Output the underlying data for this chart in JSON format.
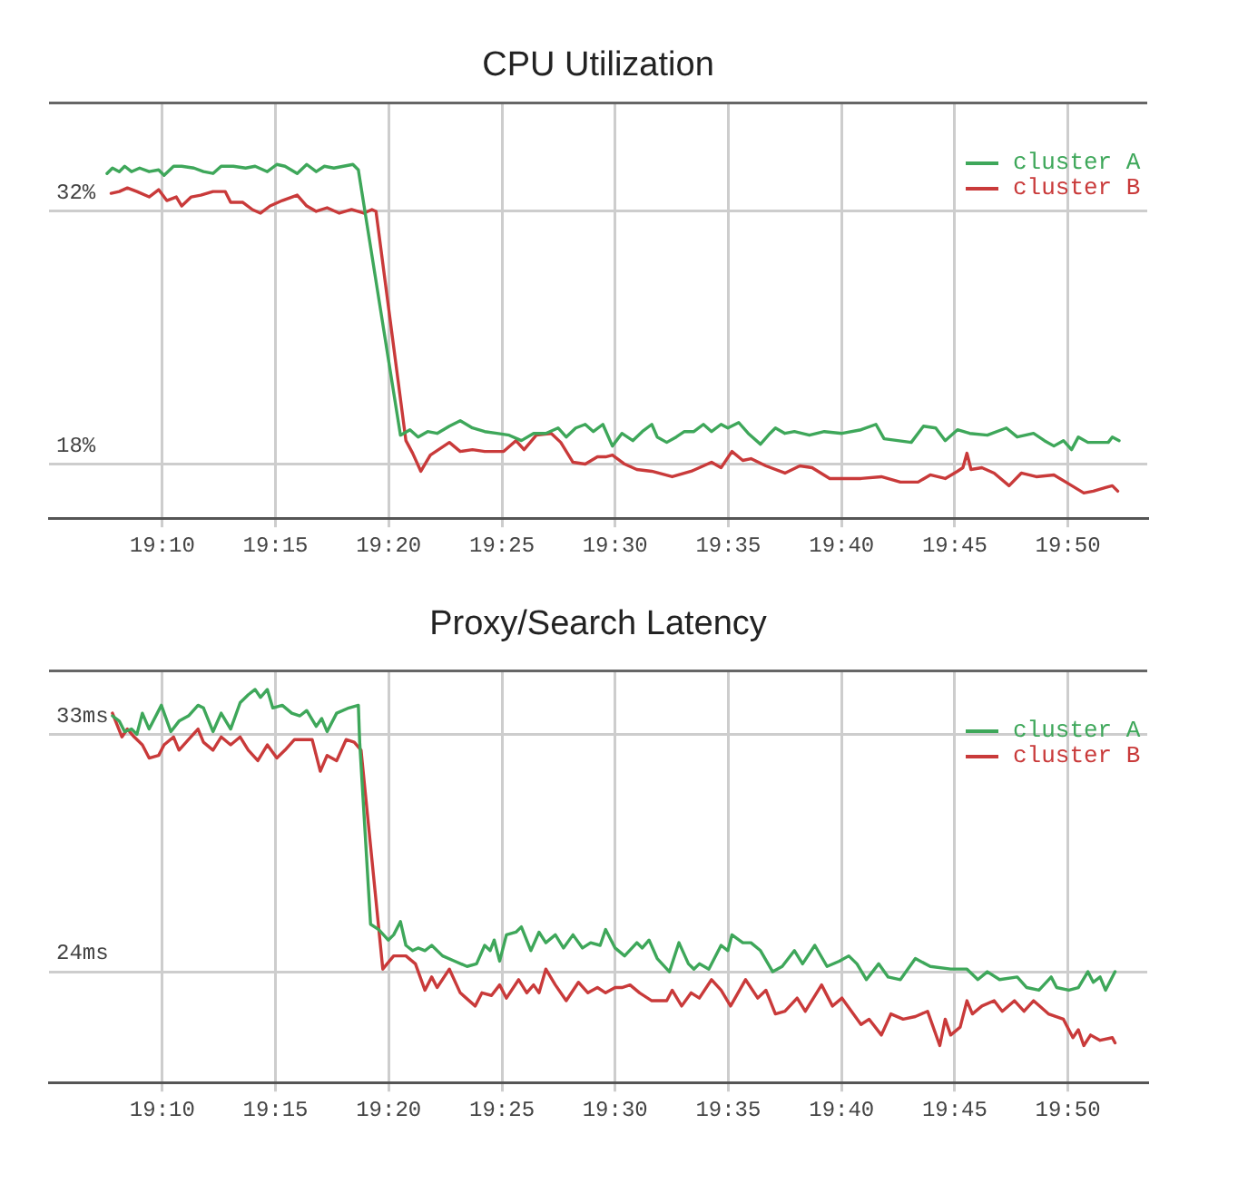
{
  "chart_data": [
    {
      "type": "line",
      "title": "CPU Utilization",
      "grid": true,
      "legend": "top right",
      "xlim": [
        19.0833,
        19.8917
      ],
      "xticks": [
        {
          "value": 19.1667,
          "label": "19:10"
        },
        {
          "value": 19.25,
          "label": "19:15"
        },
        {
          "value": 19.3333,
          "label": "19:20"
        },
        {
          "value": 19.4167,
          "label": "19:25"
        },
        {
          "value": 19.5,
          "label": "19:30"
        },
        {
          "value": 19.5833,
          "label": "19:35"
        },
        {
          "value": 19.6667,
          "label": "19:40"
        },
        {
          "value": 19.75,
          "label": "19:45"
        },
        {
          "value": 19.8333,
          "label": "19:50"
        }
      ],
      "ylim": [
        15,
        38
      ],
      "yticks": [
        {
          "value": 18,
          "label": "18%"
        },
        {
          "value": 32,
          "label": "32%"
        }
      ],
      "series": [
        {
          "name": "cluster A",
          "color": "#3ea75a",
          "x": [
            19.126,
            19.13,
            19.135,
            19.139,
            19.144,
            19.15,
            19.157,
            19.164,
            19.168,
            19.175,
            19.181,
            19.19,
            19.197,
            19.204,
            19.21,
            19.219,
            19.228,
            19.235,
            19.244,
            19.251,
            19.257,
            19.266,
            19.273,
            19.28,
            19.286,
            19.293,
            19.3,
            19.307,
            19.311,
            19.342,
            19.349,
            19.355,
            19.362,
            19.369,
            19.378,
            19.386,
            19.395,
            19.404,
            19.413,
            19.422,
            19.431,
            19.44,
            19.449,
            19.458,
            19.464,
            19.471,
            19.478,
            19.484,
            19.491,
            19.498,
            19.505,
            19.513,
            19.52,
            19.527,
            19.531,
            19.538,
            19.545,
            19.551,
            19.558,
            19.565,
            19.571,
            19.578,
            19.583,
            19.591,
            19.598,
            19.607,
            19.614,
            19.618,
            19.625,
            19.632,
            19.643,
            19.654,
            19.667,
            19.681,
            19.692,
            19.698,
            19.718,
            19.727,
            19.736,
            19.743,
            19.752,
            19.761,
            19.774,
            19.788,
            19.796,
            19.808,
            19.816,
            19.823,
            19.83,
            19.836,
            19.841,
            19.848,
            19.854,
            19.863,
            19.866,
            19.871
          ],
          "values": [
            34.1,
            34.4,
            34.2,
            34.5,
            34.2,
            34.4,
            34.2,
            34.3,
            34.0,
            34.5,
            34.5,
            34.4,
            34.2,
            34.1,
            34.5,
            34.5,
            34.4,
            34.5,
            34.2,
            34.6,
            34.5,
            34.1,
            34.6,
            34.2,
            34.5,
            34.4,
            34.5,
            34.6,
            34.3,
            19.6,
            19.9,
            19.5,
            19.8,
            19.7,
            20.1,
            20.4,
            20.0,
            19.8,
            19.7,
            19.6,
            19.3,
            19.7,
            19.7,
            20.0,
            19.5,
            20.0,
            20.2,
            19.8,
            20.2,
            19.0,
            19.7,
            19.3,
            19.8,
            20.2,
            19.5,
            19.2,
            19.5,
            19.8,
            19.8,
            20.2,
            19.8,
            20.2,
            20.0,
            20.3,
            19.7,
            19.1,
            19.7,
            20.0,
            19.7,
            19.8,
            19.6,
            19.8,
            19.7,
            19.9,
            20.2,
            19.4,
            19.2,
            20.1,
            20.0,
            19.3,
            19.9,
            19.7,
            19.6,
            20.0,
            19.5,
            19.7,
            19.3,
            19.0,
            19.3,
            18.8,
            19.5,
            19.2,
            19.2,
            19.2,
            19.5,
            19.3
          ]
        },
        {
          "name": "cluster B",
          "color": "#c93a3a",
          "x": [
            19.129,
            19.135,
            19.141,
            19.148,
            19.157,
            19.164,
            19.17,
            19.177,
            19.181,
            19.188,
            19.195,
            19.204,
            19.213,
            19.217,
            19.226,
            19.233,
            19.239,
            19.246,
            19.255,
            19.266,
            19.273,
            19.28,
            19.288,
            19.297,
            19.306,
            19.315,
            19.321,
            19.324,
            19.346,
            19.351,
            19.357,
            19.364,
            19.378,
            19.386,
            19.395,
            19.404,
            19.413,
            19.418,
            19.427,
            19.433,
            19.442,
            19.453,
            19.46,
            19.469,
            19.478,
            19.487,
            19.493,
            19.498,
            19.507,
            19.516,
            19.527,
            19.542,
            19.556,
            19.571,
            19.578,
            19.586,
            19.594,
            19.6,
            19.611,
            19.625,
            19.636,
            19.645,
            19.658,
            19.681,
            19.696,
            19.71,
            19.723,
            19.732,
            19.743,
            19.752,
            19.756,
            19.759,
            19.762,
            19.77,
            19.779,
            19.79,
            19.799,
            19.81,
            19.823,
            19.834,
            19.845,
            19.852,
            19.861,
            19.866,
            19.87
          ],
          "values": [
            33.0,
            33.1,
            33.3,
            33.1,
            32.8,
            33.2,
            32.6,
            32.8,
            32.3,
            32.8,
            32.9,
            33.1,
            33.1,
            32.5,
            32.5,
            32.1,
            31.9,
            32.3,
            32.6,
            32.9,
            32.3,
            32.0,
            32.2,
            31.9,
            32.1,
            31.9,
            32.1,
            32.0,
            19.3,
            18.6,
            17.6,
            18.5,
            19.2,
            18.7,
            18.8,
            18.7,
            18.7,
            18.7,
            19.3,
            18.8,
            19.6,
            19.7,
            19.2,
            18.1,
            18.0,
            18.4,
            18.4,
            18.5,
            18.0,
            17.7,
            17.6,
            17.3,
            17.6,
            18.1,
            17.8,
            18.7,
            18.2,
            18.3,
            17.9,
            17.5,
            17.9,
            17.8,
            17.2,
            17.2,
            17.3,
            17.0,
            17.0,
            17.4,
            17.2,
            17.6,
            17.8,
            18.6,
            17.7,
            17.8,
            17.5,
            16.8,
            17.5,
            17.3,
            17.4,
            16.9,
            16.4,
            16.5,
            16.7,
            16.8,
            16.5
          ]
        }
      ]
    },
    {
      "type": "line",
      "title": "Proxy/Search Latency",
      "grid": true,
      "legend": "top right",
      "xlim": [
        19.0833,
        19.8917
      ],
      "xticks": [
        {
          "value": 19.1667,
          "label": "19:10"
        },
        {
          "value": 19.25,
          "label": "19:15"
        },
        {
          "value": 19.3333,
          "label": "19:20"
        },
        {
          "value": 19.4167,
          "label": "19:25"
        },
        {
          "value": 19.5,
          "label": "19:30"
        },
        {
          "value": 19.5833,
          "label": "19:35"
        },
        {
          "value": 19.6667,
          "label": "19:40"
        },
        {
          "value": 19.75,
          "label": "19:45"
        },
        {
          "value": 19.8333,
          "label": "19:50"
        }
      ],
      "ylim": [
        19.8,
        35.4
      ],
      "yticks": [
        {
          "value": 24,
          "label": "24ms"
        },
        {
          "value": 33,
          "label": "33ms"
        }
      ],
      "series": [
        {
          "name": "cluster A",
          "color": "#3ea75a",
          "x": [
            19.13,
            19.135,
            19.139,
            19.144,
            19.148,
            19.152,
            19.157,
            19.166,
            19.173,
            19.179,
            19.186,
            19.193,
            19.197,
            19.204,
            19.21,
            19.217,
            19.224,
            19.23,
            19.235,
            19.239,
            19.244,
            19.248,
            19.255,
            19.262,
            19.268,
            19.273,
            19.28,
            19.284,
            19.288,
            19.295,
            19.304,
            19.311,
            19.312,
            19.32,
            19.326,
            19.333,
            19.337,
            19.342,
            19.346,
            19.351,
            19.355,
            19.36,
            19.365,
            19.373,
            19.382,
            19.391,
            19.398,
            19.404,
            19.408,
            19.411,
            19.415,
            19.42,
            19.427,
            19.431,
            19.438,
            19.444,
            19.449,
            19.456,
            19.462,
            19.469,
            19.476,
            19.482,
            19.489,
            19.493,
            19.5,
            19.507,
            19.516,
            19.52,
            19.525,
            19.531,
            19.54,
            19.547,
            19.554,
            19.558,
            19.562,
            19.569,
            19.578,
            19.583,
            19.586,
            19.594,
            19.6,
            19.607,
            19.616,
            19.623,
            19.632,
            19.638,
            19.647,
            19.656,
            19.665,
            19.672,
            19.678,
            19.685,
            19.694,
            19.701,
            19.71,
            19.721,
            19.732,
            19.747,
            19.759,
            19.767,
            19.774,
            19.783,
            19.796,
            19.803,
            19.812,
            19.821,
            19.825,
            19.834,
            19.841,
            19.848,
            19.852,
            19.857,
            19.861,
            19.868
          ],
          "values": [
            33.7,
            33.5,
            33.1,
            33.2,
            33.0,
            33.8,
            33.2,
            34.1,
            33.1,
            33.5,
            33.7,
            34.1,
            34.0,
            33.1,
            33.8,
            33.2,
            34.2,
            34.5,
            34.7,
            34.4,
            34.7,
            34.0,
            34.1,
            33.8,
            33.7,
            33.9,
            33.3,
            33.6,
            33.1,
            33.8,
            34.0,
            34.1,
            32.7,
            25.8,
            25.6,
            25.2,
            25.4,
            25.9,
            25.0,
            24.8,
            24.9,
            24.8,
            25.0,
            24.6,
            24.4,
            24.2,
            24.3,
            25.0,
            24.8,
            25.2,
            24.4,
            25.4,
            25.5,
            25.7,
            24.8,
            25.5,
            25.1,
            25.4,
            24.9,
            25.4,
            24.9,
            25.1,
            25.0,
            25.6,
            24.9,
            24.6,
            25.1,
            24.9,
            25.2,
            24.5,
            24.0,
            25.1,
            24.3,
            24.1,
            24.3,
            24.1,
            25.0,
            24.8,
            25.4,
            25.1,
            25.1,
            24.8,
            24.0,
            24.2,
            24.8,
            24.3,
            25.0,
            24.2,
            24.4,
            24.6,
            24.3,
            23.7,
            24.3,
            23.8,
            23.7,
            24.5,
            24.2,
            24.1,
            24.1,
            23.7,
            24.0,
            23.7,
            23.8,
            23.4,
            23.3,
            23.8,
            23.4,
            23.3,
            23.4,
            24.0,
            23.6,
            23.8,
            23.3,
            24.0
          ]
        },
        {
          "name": "cluster B",
          "color": "#c93a3a",
          "x": [
            19.13,
            19.137,
            19.141,
            19.146,
            19.152,
            19.157,
            19.164,
            19.168,
            19.175,
            19.179,
            19.186,
            19.193,
            19.197,
            19.204,
            19.21,
            19.217,
            19.224,
            19.23,
            19.237,
            19.244,
            19.251,
            19.257,
            19.264,
            19.271,
            19.277,
            19.283,
            19.288,
            19.295,
            19.302,
            19.308,
            19.313,
            19.329,
            19.337,
            19.346,
            19.353,
            19.36,
            19.365,
            19.369,
            19.378,
            19.386,
            19.397,
            19.402,
            19.409,
            19.415,
            19.42,
            19.429,
            19.435,
            19.44,
            19.444,
            19.449,
            19.456,
            19.464,
            19.473,
            19.48,
            19.487,
            19.493,
            19.5,
            19.505,
            19.511,
            19.518,
            19.527,
            19.538,
            19.542,
            19.549,
            19.556,
            19.562,
            19.571,
            19.578,
            19.585,
            19.596,
            19.605,
            19.611,
            19.618,
            19.625,
            19.634,
            19.64,
            19.652,
            19.66,
            19.667,
            19.681,
            19.687,
            19.696,
            19.703,
            19.712,
            19.721,
            19.73,
            19.739,
            19.743,
            19.747,
            19.754,
            19.759,
            19.763,
            19.77,
            19.779,
            19.785,
            19.794,
            19.801,
            19.808,
            19.819,
            19.83,
            19.837,
            19.841,
            19.845,
            19.85,
            19.857,
            19.866,
            19.868
          ],
          "values": [
            33.8,
            32.9,
            33.2,
            32.9,
            32.6,
            32.1,
            32.2,
            32.6,
            32.9,
            32.4,
            32.8,
            33.2,
            32.7,
            32.4,
            32.9,
            32.6,
            32.9,
            32.4,
            32.0,
            32.6,
            32.1,
            32.4,
            32.8,
            32.8,
            32.8,
            31.6,
            32.2,
            32.0,
            32.8,
            32.7,
            32.4,
            24.1,
            24.6,
            24.6,
            24.3,
            23.3,
            23.8,
            23.4,
            24.1,
            23.2,
            22.7,
            23.2,
            23.1,
            23.5,
            23.0,
            23.7,
            23.2,
            23.5,
            23.2,
            24.1,
            23.5,
            22.9,
            23.6,
            23.2,
            23.4,
            23.2,
            23.4,
            23.4,
            23.5,
            23.2,
            22.9,
            22.9,
            23.3,
            22.7,
            23.2,
            23.0,
            23.7,
            23.3,
            22.7,
            23.7,
            23.0,
            23.3,
            22.4,
            22.5,
            23.0,
            22.5,
            23.5,
            22.7,
            23.0,
            22.0,
            22.2,
            21.6,
            22.4,
            22.2,
            22.3,
            22.5,
            21.2,
            22.2,
            21.6,
            21.9,
            22.9,
            22.4,
            22.7,
            22.9,
            22.5,
            22.9,
            22.5,
            22.9,
            22.4,
            22.2,
            21.5,
            21.8,
            21.2,
            21.6,
            21.4,
            21.5,
            21.3
          ]
        }
      ]
    }
  ]
}
